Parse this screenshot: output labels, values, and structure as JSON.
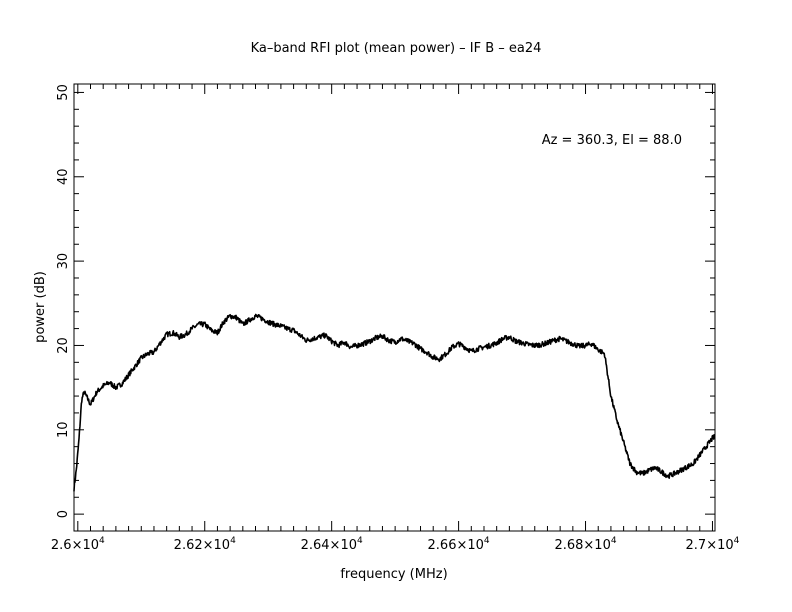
{
  "chart_data": {
    "type": "line",
    "title": "Ka–band RFI plot (mean power) – IF B – ea24",
    "xlabel": "frequency (MHz)",
    "ylabel": "power (dB)",
    "annotation": "Az = 360.3, El = 88.0",
    "xlim": [
      25994,
      27004
    ],
    "ylim": [
      -2,
      51
    ],
    "x_ticks": [
      {
        "value": 26000,
        "mantissa": "2.6",
        "exp": "4"
      },
      {
        "value": 26200,
        "mantissa": "2.62",
        "exp": "4"
      },
      {
        "value": 26400,
        "mantissa": "2.64",
        "exp": "4"
      },
      {
        "value": 26600,
        "mantissa": "2.66",
        "exp": "4"
      },
      {
        "value": 26800,
        "mantissa": "2.68",
        "exp": "4"
      },
      {
        "value": 27000,
        "mantissa": "2.7",
        "exp": "4"
      }
    ],
    "y_ticks": [
      0,
      10,
      20,
      30,
      40,
      50
    ],
    "series": [
      {
        "color": "#000000",
        "x": [
          25994,
          25998,
          26002,
          26006,
          26010,
          26020,
          26030,
          26040,
          26050,
          26060,
          26070,
          26080,
          26090,
          26100,
          26110,
          26120,
          26130,
          26140,
          26150,
          26160,
          26170,
          26180,
          26190,
          26200,
          26210,
          26220,
          26230,
          26240,
          26250,
          26260,
          26270,
          26280,
          26290,
          26300,
          26310,
          26320,
          26330,
          26340,
          26350,
          26360,
          26370,
          26380,
          26390,
          26400,
          26410,
          26420,
          26430,
          26440,
          26450,
          26460,
          26470,
          26480,
          26490,
          26500,
          26510,
          26520,
          26530,
          26540,
          26550,
          26560,
          26570,
          26580,
          26590,
          26600,
          26610,
          26620,
          26630,
          26640,
          26650,
          26660,
          26670,
          26680,
          26690,
          26700,
          26710,
          26720,
          26730,
          26740,
          26750,
          26760,
          26770,
          26780,
          26790,
          26800,
          26810,
          26820,
          26830,
          26840,
          26850,
          26860,
          26870,
          26880,
          26890,
          26900,
          26910,
          26920,
          26930,
          26940,
          26950,
          26960,
          26970,
          26975,
          26980,
          26985,
          26990,
          26995,
          27000,
          27004
        ],
        "y": [
          3.0,
          5.5,
          9.0,
          13.5,
          14.5,
          13.0,
          14.5,
          15.2,
          15.6,
          15.0,
          15.5,
          16.5,
          17.5,
          18.5,
          19.0,
          19.2,
          20.3,
          21.3,
          21.5,
          21.0,
          21.3,
          22.0,
          22.5,
          22.5,
          21.8,
          21.5,
          22.8,
          23.5,
          23.3,
          22.5,
          23.0,
          23.5,
          23.2,
          22.8,
          22.5,
          22.3,
          22.0,
          21.8,
          21.2,
          20.6,
          20.8,
          21.0,
          21.2,
          20.5,
          20.0,
          20.4,
          19.8,
          20.0,
          20.2,
          20.5,
          20.9,
          21.1,
          20.6,
          20.4,
          20.8,
          20.5,
          20.2,
          19.6,
          19.2,
          18.6,
          18.4,
          19.0,
          19.8,
          20.2,
          19.8,
          19.3,
          19.6,
          19.8,
          20.0,
          20.3,
          20.8,
          21.0,
          20.5,
          20.3,
          20.1,
          20.0,
          20.1,
          20.3,
          20.6,
          20.8,
          20.5,
          20.2,
          19.9,
          20.0,
          20.2,
          19.5,
          19.0,
          14.0,
          11.0,
          8.5,
          6.0,
          5.0,
          4.8,
          5.2,
          5.5,
          5.0,
          4.5,
          4.8,
          5.2,
          5.6,
          6.0,
          6.5,
          7.0,
          7.5,
          8.0,
          8.5,
          9.0,
          9.2
        ]
      }
    ]
  }
}
